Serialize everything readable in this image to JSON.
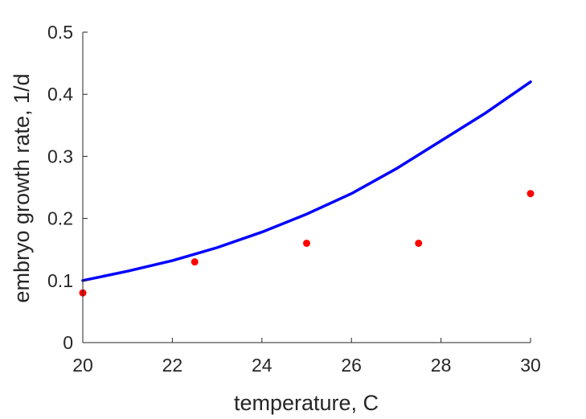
{
  "chart_data": {
    "type": "scatter",
    "title": "",
    "xlabel": "temperature, C",
    "ylabel": "embryo growth rate, 1/d",
    "xlim": [
      20,
      30
    ],
    "ylim": [
      0,
      0.5
    ],
    "xticks": [
      20,
      22,
      24,
      26,
      28,
      30
    ],
    "yticks": [
      0,
      0.1,
      0.2,
      0.3,
      0.4,
      0.5
    ],
    "grid": false,
    "series": [
      {
        "kind": "line",
        "color": "#0000ff",
        "x": [
          20,
          21,
          22,
          23,
          24,
          25,
          26,
          27,
          28,
          29,
          30
        ],
        "y": [
          0.1,
          0.115,
          0.132,
          0.153,
          0.178,
          0.207,
          0.24,
          0.28,
          0.325,
          0.37,
          0.42
        ]
      },
      {
        "kind": "points",
        "color": "#ff0000",
        "x": [
          20,
          22.5,
          25,
          27.5,
          30
        ],
        "y": [
          0.08,
          0.13,
          0.16,
          0.16,
          0.24
        ]
      }
    ]
  }
}
